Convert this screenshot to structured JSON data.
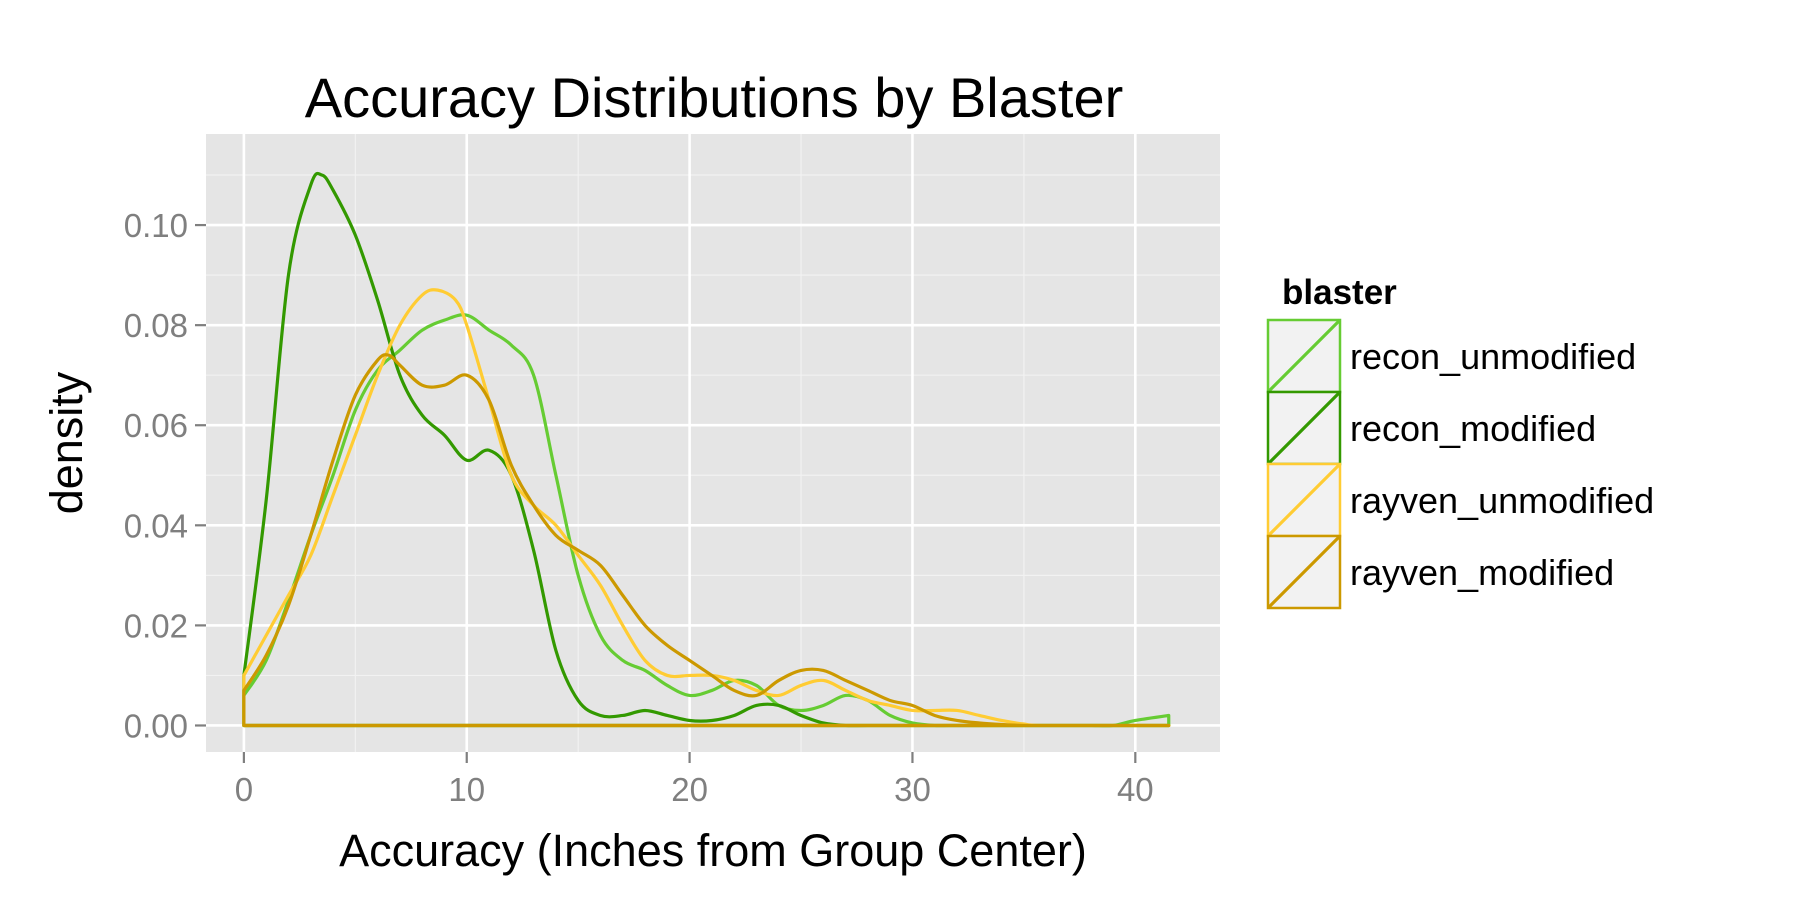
{
  "chart_data": {
    "type": "line",
    "title": "Accuracy Distributions by Blaster",
    "xlabel": "Accuracy (Inches from Group Center)",
    "ylabel": "density",
    "xlim": [
      -1.7,
      43.8
    ],
    "ylim": [
      -0.0053,
      0.1182
    ],
    "x_ticks": [
      0,
      10,
      20,
      30,
      40
    ],
    "x_tick_labels": [
      "0",
      "10",
      "20",
      "30",
      "40"
    ],
    "y_ticks": [
      0,
      0.02,
      0.04,
      0.06,
      0.08,
      0.1
    ],
    "y_tick_labels": [
      "0.00",
      "0.02",
      "0.04",
      "0.06",
      "0.08",
      "0.10"
    ],
    "grid": true,
    "legend": {
      "title": "blaster",
      "position": "right"
    },
    "series": [
      {
        "name": "recon_unmodified",
        "color": "#66cc33",
        "x_max": 41.5,
        "x": [
          0,
          1,
          2,
          3,
          4,
          5,
          6,
          7,
          8,
          9,
          10,
          11,
          12,
          13,
          14,
          15,
          16,
          17,
          18,
          19,
          20,
          21,
          22,
          23,
          24,
          25,
          26,
          27,
          28,
          29,
          30,
          31,
          32,
          33,
          34,
          35,
          36,
          37,
          38,
          39,
          40,
          41.5
        ],
        "values": [
          0.006,
          0.013,
          0.025,
          0.038,
          0.05,
          0.063,
          0.071,
          0.075,
          0.079,
          0.081,
          0.082,
          0.079,
          0.076,
          0.07,
          0.05,
          0.03,
          0.018,
          0.013,
          0.011,
          0.008,
          0.006,
          0.007,
          0.009,
          0.008,
          0.004,
          0.003,
          0.004,
          0.006,
          0.005,
          0.002,
          0.0005,
          0,
          0,
          0,
          0,
          0,
          0,
          0,
          0,
          0,
          0.001,
          0.002
        ]
      },
      {
        "name": "recon_modified",
        "color": "#339900",
        "x_max": 41.5,
        "x": [
          0,
          1,
          2,
          3,
          3.5,
          4,
          5,
          6,
          7,
          8,
          9,
          10,
          11,
          12,
          13,
          14,
          15,
          16,
          17,
          18,
          19,
          20,
          21,
          22,
          23,
          24,
          25,
          26,
          27,
          28,
          30,
          35,
          41.5
        ],
        "values": [
          0.01,
          0.045,
          0.09,
          0.108,
          0.11,
          0.107,
          0.098,
          0.085,
          0.07,
          0.062,
          0.058,
          0.053,
          0.055,
          0.05,
          0.035,
          0.015,
          0.005,
          0.002,
          0.002,
          0.003,
          0.002,
          0.001,
          0.001,
          0.002,
          0.004,
          0.004,
          0.002,
          0.0005,
          0,
          0,
          0,
          0,
          0
        ]
      },
      {
        "name": "rayven_unmodified",
        "color": "#ffcc33",
        "x_max": 41.5,
        "x": [
          0,
          1,
          2,
          3,
          4,
          5,
          6,
          7,
          8,
          8.7,
          9.5,
          10,
          11,
          12,
          13,
          14,
          15,
          16,
          17,
          18,
          19,
          20,
          21,
          22,
          23,
          24,
          25,
          26,
          27,
          28,
          29,
          30,
          31,
          32,
          33,
          34,
          35,
          36,
          41.5
        ],
        "values": [
          0.01,
          0.018,
          0.026,
          0.034,
          0.046,
          0.058,
          0.07,
          0.08,
          0.086,
          0.087,
          0.085,
          0.08,
          0.065,
          0.05,
          0.044,
          0.04,
          0.034,
          0.028,
          0.02,
          0.013,
          0.01,
          0.01,
          0.01,
          0.009,
          0.007,
          0.006,
          0.008,
          0.009,
          0.007,
          0.005,
          0.004,
          0.003,
          0.003,
          0.003,
          0.002,
          0.001,
          0.0003,
          0,
          0
        ]
      },
      {
        "name": "rayven_modified",
        "color": "#cc9900",
        "x_max": 41.5,
        "x": [
          0,
          1,
          2,
          3,
          4,
          5,
          6,
          6.5,
          7,
          8,
          9,
          10,
          11,
          12,
          13,
          14,
          15,
          16,
          17,
          18,
          19,
          20,
          21,
          22,
          23,
          24,
          25,
          26,
          27,
          28,
          29,
          30,
          31,
          32,
          33,
          34,
          35,
          36,
          41.5
        ],
        "values": [
          0.007,
          0.014,
          0.024,
          0.038,
          0.053,
          0.066,
          0.073,
          0.074,
          0.072,
          0.068,
          0.068,
          0.07,
          0.065,
          0.052,
          0.044,
          0.038,
          0.035,
          0.032,
          0.026,
          0.02,
          0.016,
          0.013,
          0.01,
          0.007,
          0.006,
          0.009,
          0.011,
          0.011,
          0.009,
          0.007,
          0.005,
          0.004,
          0.002,
          0.001,
          0.0005,
          0.0002,
          0,
          0,
          0
        ]
      }
    ]
  }
}
